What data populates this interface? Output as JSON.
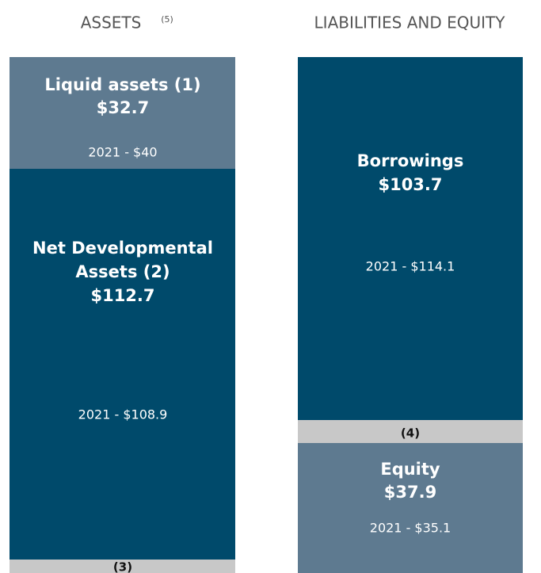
{
  "assets": {
    "title": "ASSETS",
    "note": "(5)",
    "liquid": {
      "label": "Liquid assets (1)",
      "value": "$32.7",
      "prior": "2021 - $40"
    },
    "developmental": {
      "label": [
        "Net Developmental",
        "Assets (2)"
      ],
      "value": "$112.7",
      "prior": "2021 - $108.9"
    },
    "other": {
      "label": "(3)"
    }
  },
  "liabilities": {
    "title": "LIABILITIES AND EQUITY",
    "borrowings": {
      "label": "Borrowings",
      "value": "$103.7",
      "prior": "2021 - $114.1"
    },
    "other": {
      "label": "(4)"
    },
    "equity": {
      "label": "Equity",
      "value": "$37.9",
      "prior": "2021 - $35.1"
    }
  }
}
